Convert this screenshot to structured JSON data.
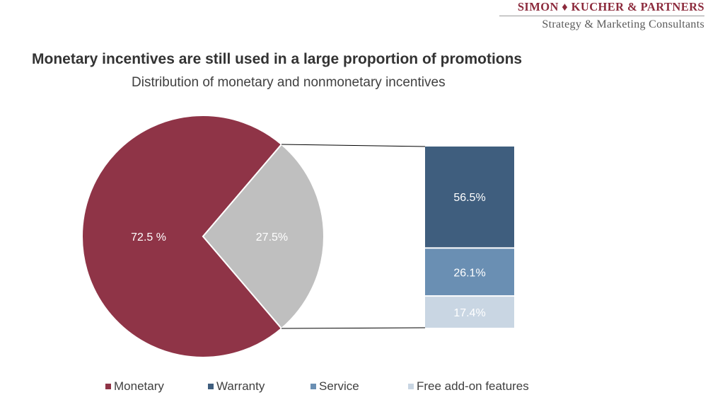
{
  "brand": {
    "name": "SIMON ♦ KUCHER & PARTNERS",
    "tagline": "Strategy & Marketing Consultants"
  },
  "chart_data": {
    "type": "pie",
    "title": "Monetary incentives are still used in a large proportion of promotions",
    "subtitle": "Distribution of monetary and nonmonetary incentives",
    "pie": {
      "slices": [
        {
          "name": "Monetary",
          "value": 72.5,
          "label": "72.5 %",
          "color": "#8f3447"
        },
        {
          "name": "",
          "value": 27.5,
          "label": "27.5%",
          "color": "#bfbfbf"
        }
      ]
    },
    "breakdown_bar": {
      "segments": [
        {
          "name": "Warranty",
          "value": 56.5,
          "label": "56.5%",
          "color": "#3f5e7e"
        },
        {
          "name": "Service",
          "value": 26.1,
          "label": "26.1%",
          "color": "#6a8fb3"
        },
        {
          "name": "Free add-on features",
          "value": 17.4,
          "label": "17.4%",
          "color": "#c9d6e3"
        }
      ]
    },
    "legend": {
      "placement": "bottom",
      "items": [
        {
          "label": "Monetary",
          "color": "#8f3447"
        },
        {
          "label": "Warranty",
          "color": "#3f5e7e"
        },
        {
          "label": "Service",
          "color": "#6a8fb3"
        },
        {
          "label": "Free add-on features",
          "color": "#c9d6e3"
        }
      ]
    }
  }
}
